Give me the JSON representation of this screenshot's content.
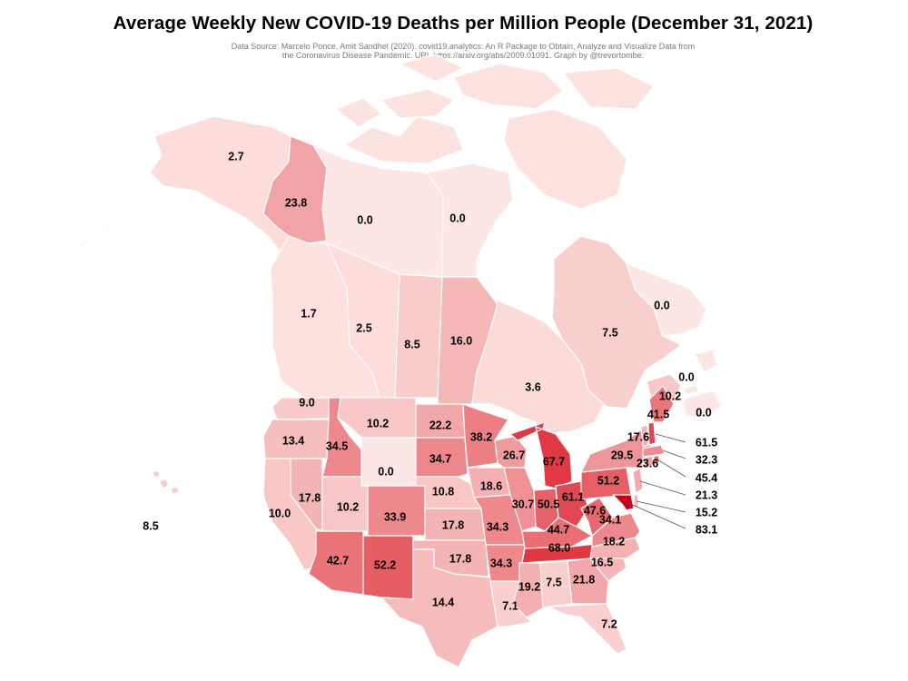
{
  "title": "Average Weekly New COVID-19 Deaths per Million People (December 31, 2021)",
  "subtitle_line1": "Data Source: Marcelo Ponce, Amit Sandhel (2020). covid19.analytics: An R Package to Obtain, Analyze and Visualize Data from",
  "subtitle_line2": "the Coronavirus Disease Pandemic. URL https://arxiv.org/abs/2009.01091. Graph by @trevortombe.",
  "colors": {
    "min": "#fde7e4",
    "max": "#d9111e",
    "border": "#ffffff",
    "top_value": "#c8001c"
  },
  "regions": [
    {
      "id": "AK",
      "value": "2.7"
    },
    {
      "id": "YT",
      "value": "23.8"
    },
    {
      "id": "NT",
      "value": "0.0"
    },
    {
      "id": "NU",
      "value": "0.0"
    },
    {
      "id": "BC",
      "value": "1.7"
    },
    {
      "id": "AB",
      "value": "2.5"
    },
    {
      "id": "SK",
      "value": "8.5"
    },
    {
      "id": "MB",
      "value": "16.0"
    },
    {
      "id": "ON",
      "value": "3.6"
    },
    {
      "id": "QC",
      "value": "7.5"
    },
    {
      "id": "NL",
      "value": "0.0"
    },
    {
      "id": "PE",
      "value": "0.0"
    },
    {
      "id": "NS",
      "value": "0.0"
    },
    {
      "id": "NB",
      "value": "10.2"
    },
    {
      "id": "HI",
      "value": "8.5"
    },
    {
      "id": "WA",
      "value": "9.0"
    },
    {
      "id": "OR",
      "value": "13.4"
    },
    {
      "id": "CA",
      "value": "10.0"
    },
    {
      "id": "ID",
      "value": "34.5"
    },
    {
      "id": "NV",
      "value": "17.8"
    },
    {
      "id": "MT",
      "value": "10.2"
    },
    {
      "id": "WY",
      "value": "0.0"
    },
    {
      "id": "UT",
      "value": "10.2"
    },
    {
      "id": "AZ",
      "value": "42.7"
    },
    {
      "id": "CO",
      "value": "33.9"
    },
    {
      "id": "NM",
      "value": "52.2"
    },
    {
      "id": "ND",
      "value": "22.2"
    },
    {
      "id": "SD",
      "value": "34.7"
    },
    {
      "id": "NE",
      "value": "10.8"
    },
    {
      "id": "KS",
      "value": "17.8"
    },
    {
      "id": "OK",
      "value": "17.8"
    },
    {
      "id": "TX",
      "value": "14.4"
    },
    {
      "id": "MN",
      "value": "38.2"
    },
    {
      "id": "IA",
      "value": "18.6"
    },
    {
      "id": "MO",
      "value": "34.3"
    },
    {
      "id": "AR",
      "value": "34.3"
    },
    {
      "id": "LA",
      "value": "7.1"
    },
    {
      "id": "WI",
      "value": "26.7"
    },
    {
      "id": "IL",
      "value": "30.7"
    },
    {
      "id": "MI",
      "value": "67.7"
    },
    {
      "id": "IN",
      "value": "50.5"
    },
    {
      "id": "OH",
      "value": "61.1"
    },
    {
      "id": "KY",
      "value": "44.7"
    },
    {
      "id": "TN",
      "value": "68.0"
    },
    {
      "id": "MS",
      "value": "19.2"
    },
    {
      "id": "AL",
      "value": "7.5"
    },
    {
      "id": "GA",
      "value": "21.8"
    },
    {
      "id": "FL",
      "value": "7.2"
    },
    {
      "id": "SC",
      "value": "16.5"
    },
    {
      "id": "NC",
      "value": "18.2"
    },
    {
      "id": "VA",
      "value": "34.1"
    },
    {
      "id": "WV",
      "value": "47.6"
    },
    {
      "id": "PA",
      "value": "51.2"
    },
    {
      "id": "NY",
      "value": "29.5"
    },
    {
      "id": "VT",
      "value": "17.6"
    },
    {
      "id": "ME",
      "value": "41.5"
    },
    {
      "id": "NH",
      "value": "61.5"
    },
    {
      "id": "MA",
      "value": "32.3"
    },
    {
      "id": "RI",
      "value": "45.4"
    },
    {
      "id": "CT",
      "value": "23.6"
    },
    {
      "id": "NJ",
      "value": "21.3"
    },
    {
      "id": "DE",
      "value": "15.2"
    },
    {
      "id": "MD",
      "value": "83.1"
    }
  ]
}
